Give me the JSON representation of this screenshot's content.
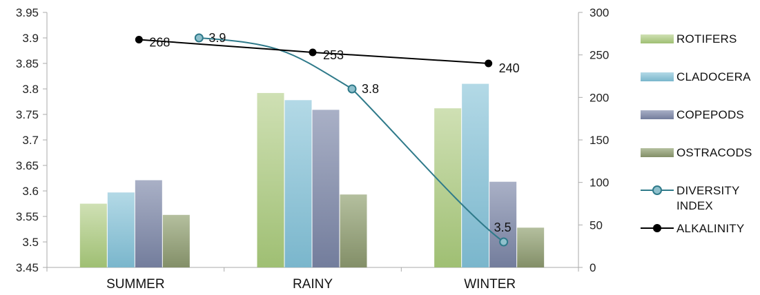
{
  "chart_data": {
    "type": "bar",
    "title": "",
    "categories": [
      "SUMMER",
      "RAINY",
      "WINTER"
    ],
    "y_left": {
      "min": 3.45,
      "max": 3.95,
      "ticks": [
        "3.45",
        "3.5",
        "3.55",
        "3.6",
        "3.65",
        "3.7",
        "3.75",
        "3.8",
        "3.85",
        "3.9",
        "3.95"
      ]
    },
    "y_right": {
      "min": 0,
      "max": 300,
      "ticks": [
        "0",
        "50",
        "100",
        "150",
        "200",
        "250",
        "300"
      ]
    },
    "series": [
      {
        "name": "ROTIFERS",
        "type": "bar",
        "axis": "left",
        "color": "#b5cf8e",
        "values": [
          3.575,
          3.792,
          3.762
        ]
      },
      {
        "name": "CLADOCERA",
        "type": "bar",
        "axis": "left",
        "color": "#8fc4d8",
        "values": [
          3.597,
          3.778,
          3.81
        ]
      },
      {
        "name": "COPEPODS",
        "type": "bar",
        "axis": "left",
        "color": "#8d96b2",
        "values": [
          3.621,
          3.759,
          3.618
        ]
      },
      {
        "name": "OSTRACODS",
        "type": "bar",
        "axis": "left",
        "color": "#9aa881",
        "values": [
          3.553,
          3.593,
          3.528
        ]
      },
      {
        "name": "DIVERSITY INDEX",
        "type": "line",
        "axis": "left",
        "color": "#2f7a8a",
        "smooth": true,
        "values": [
          3.9,
          3.8,
          3.5
        ],
        "labels": [
          "3.9",
          "3.8",
          "3.5"
        ]
      },
      {
        "name": "ALKALINITY",
        "type": "line",
        "axis": "right",
        "color": "#000000",
        "values": [
          268,
          253,
          240
        ],
        "labels": [
          "268",
          "253",
          "240"
        ]
      }
    ],
    "legend_position": "right",
    "grid": false
  }
}
